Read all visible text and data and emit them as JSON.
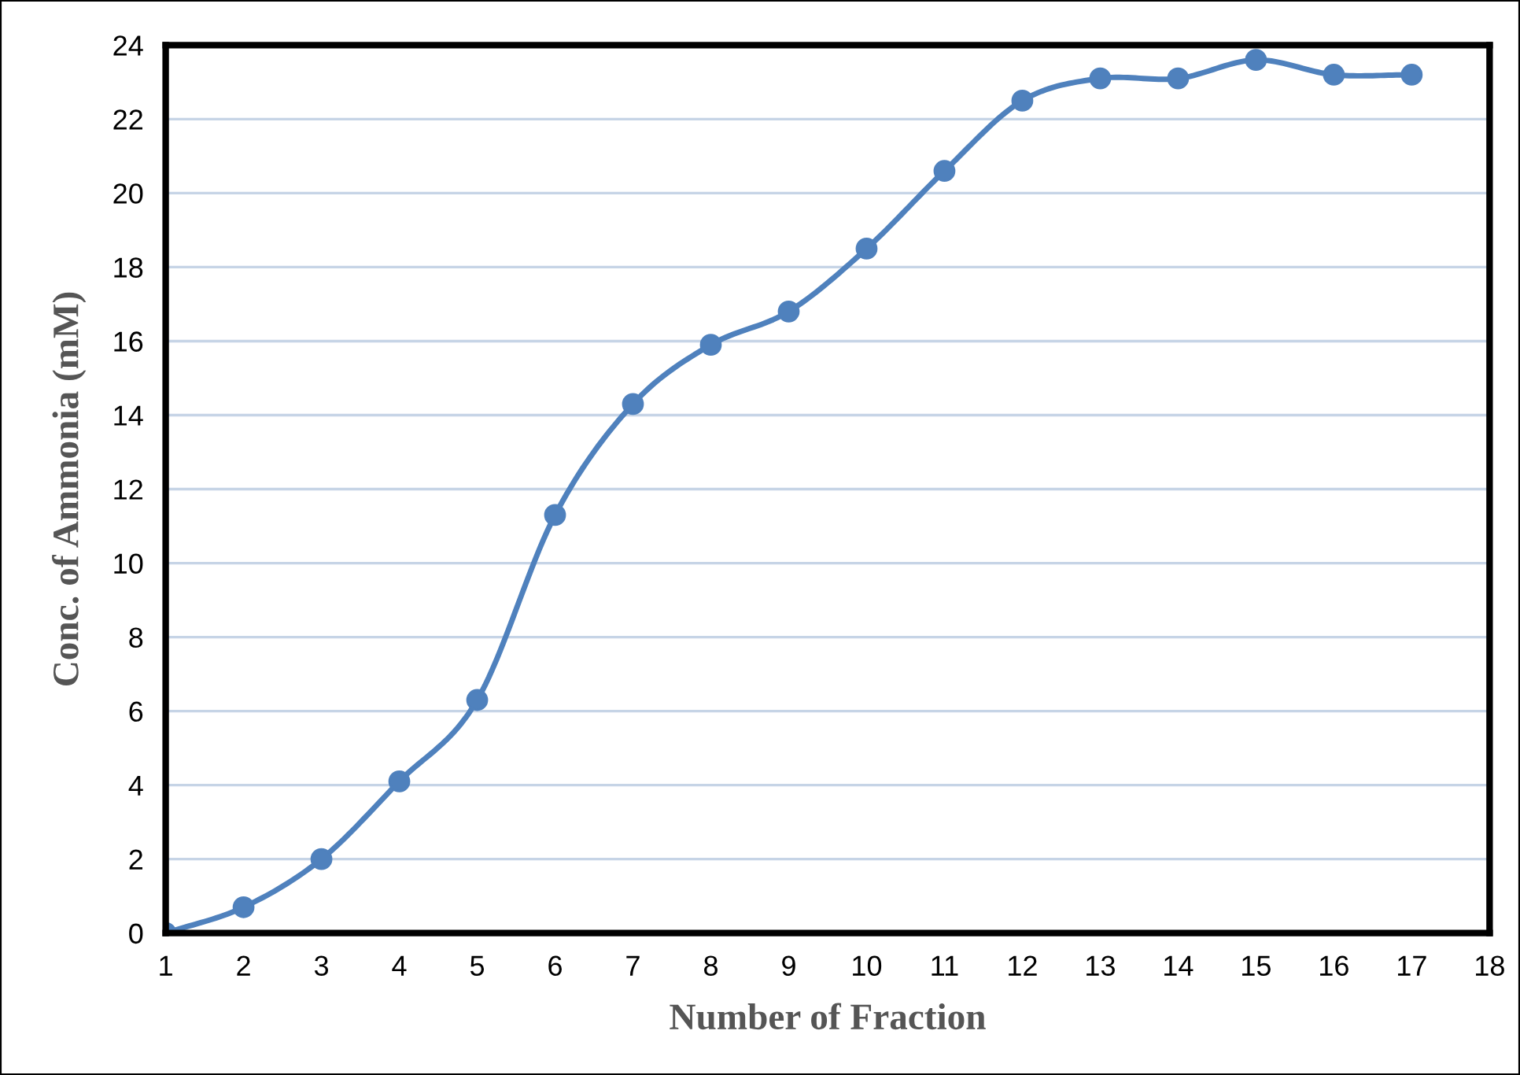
{
  "chart_data": {
    "type": "line",
    "xlabel": "Number of Fraction",
    "ylabel": "Conc. of Ammonia (mM)",
    "x": [
      1,
      2,
      3,
      4,
      5,
      6,
      7,
      8,
      9,
      10,
      11,
      12,
      13,
      14,
      15,
      16,
      17
    ],
    "series": [
      {
        "color": "#4f81bd",
        "values": [
          0,
          0.7,
          2.0,
          4.1,
          6.3,
          11.3,
          14.3,
          15.9,
          16.8,
          18.5,
          20.6,
          22.5,
          23.1,
          23.1,
          23.6,
          23.2,
          23.2
        ]
      }
    ],
    "xlim": [
      1,
      18
    ],
    "xticks": [
      1,
      2,
      3,
      4,
      5,
      6,
      7,
      8,
      9,
      10,
      11,
      12,
      13,
      14,
      15,
      16,
      17,
      18
    ],
    "ylim": [
      0,
      24
    ],
    "yticks": [
      0,
      2,
      4,
      6,
      8,
      10,
      12,
      14,
      16,
      18,
      20,
      22,
      24
    ],
    "grid": "y",
    "marker": "circle",
    "line_style": "solid",
    "legend": false
  }
}
